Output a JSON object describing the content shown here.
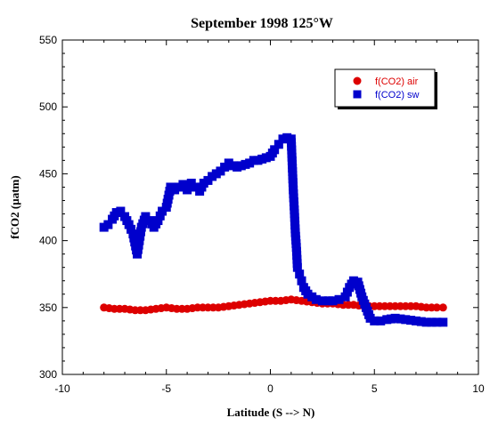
{
  "chart_data": {
    "type": "scatter",
    "title": "September 1998 125°W",
    "xlabel": "Latitude (S --> N)",
    "ylabel": "fCO2 (µatm)",
    "xlim": [
      -10,
      10
    ],
    "ylim": [
      300,
      550
    ],
    "xticks": [
      "-10",
      "-5",
      "0",
      "5",
      "10"
    ],
    "yticks": [
      "300",
      "350",
      "400",
      "450",
      "500",
      "550"
    ],
    "grid": false,
    "legend_position": "top-right",
    "series": [
      {
        "name": "f(CO2) air",
        "color": "#dd0000",
        "marker": "circle",
        "x": [
          -8.0,
          -7.5,
          -7.0,
          -6.5,
          -6.0,
          -5.5,
          -5.0,
          -4.5,
          -4.0,
          -3.5,
          -3.0,
          -2.5,
          -2.0,
          -1.5,
          -1.0,
          -0.5,
          0.0,
          0.5,
          1.0,
          1.5,
          2.0,
          2.5,
          3.0,
          3.5,
          4.0,
          4.5,
          5.0,
          5.5,
          6.0,
          6.5,
          7.0,
          7.5,
          8.0,
          8.3
        ],
        "y": [
          350,
          349,
          349,
          348,
          348,
          349,
          350,
          349,
          349,
          350,
          350,
          350,
          351,
          352,
          353,
          354,
          355,
          355,
          356,
          355,
          354,
          353,
          353,
          352,
          352,
          351,
          351,
          351,
          351,
          351,
          351,
          350,
          350,
          350
        ]
      },
      {
        "name": "f(CO2) sw",
        "color": "#0000cc",
        "marker": "square",
        "x": [
          -8.0,
          -7.8,
          -7.6,
          -7.4,
          -7.2,
          -7.0,
          -6.8,
          -6.6,
          -6.4,
          -6.3,
          -6.2,
          -6.0,
          -5.8,
          -5.6,
          -5.4,
          -5.2,
          -5.0,
          -4.8,
          -4.6,
          -4.4,
          -4.2,
          -4.0,
          -3.8,
          -3.6,
          -3.4,
          -3.2,
          -3.0,
          -2.8,
          -2.6,
          -2.4,
          -2.2,
          -2.0,
          -1.8,
          -1.6,
          -1.4,
          -1.2,
          -1.0,
          -0.8,
          -0.6,
          -0.4,
          -0.2,
          0.0,
          0.2,
          0.4,
          0.6,
          0.8,
          1.0,
          1.1,
          1.15,
          1.2,
          1.25,
          1.3,
          1.4,
          1.5,
          1.6,
          1.8,
          2.0,
          2.2,
          2.5,
          2.8,
          3.0,
          3.3,
          3.6,
          3.8,
          4.0,
          4.2,
          4.4,
          4.6,
          4.8,
          5.0,
          5.3,
          5.6,
          6.0,
          6.5,
          7.0,
          7.5,
          8.0,
          8.3
        ],
        "y": [
          410,
          412,
          416,
          421,
          422,
          418,
          412,
          405,
          390,
          400,
          410,
          418,
          415,
          410,
          415,
          422,
          425,
          440,
          438,
          440,
          442,
          438,
          443,
          440,
          437,
          443,
          445,
          448,
          450,
          452,
          455,
          458,
          456,
          455,
          456,
          457,
          458,
          460,
          460,
          461,
          462,
          463,
          468,
          472,
          476,
          477,
          476,
          438,
          423,
          406,
          395,
          380,
          375,
          370,
          365,
          360,
          358,
          356,
          355,
          355,
          355,
          356,
          358,
          365,
          370,
          369,
          358,
          350,
          342,
          340,
          340,
          341,
          342,
          341,
          340,
          339,
          339,
          339
        ]
      }
    ]
  }
}
